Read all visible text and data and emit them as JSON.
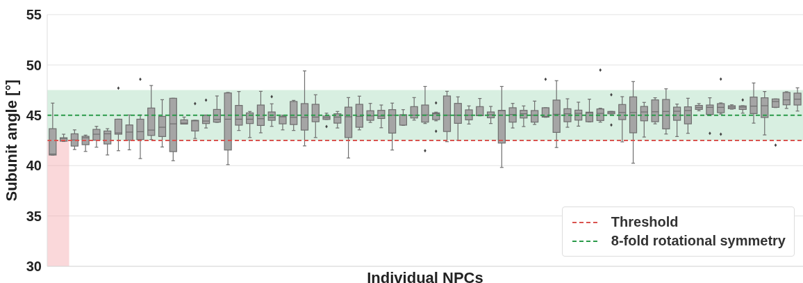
{
  "chart_data": {
    "type": "box",
    "xlabel": "Individual NPCs",
    "ylabel": "Subunit angle [°]",
    "ylim": [
      30,
      55
    ],
    "yticks": [
      30,
      35,
      40,
      45,
      50,
      55
    ],
    "grid": "y",
    "legend": "bottom right",
    "tick_labels": "y",
    "color": "#a5a5a5",
    "categories": [
      null,
      null,
      null,
      null,
      null,
      null,
      null,
      null,
      null,
      null,
      null,
      null,
      null,
      null,
      null,
      null,
      null,
      null,
      null,
      null,
      null,
      null,
      null,
      null,
      null,
      null,
      null,
      null,
      null,
      null,
      null,
      null,
      null,
      null,
      null,
      null,
      null,
      null,
      null,
      null,
      null,
      null,
      null,
      null,
      null,
      null,
      null,
      null,
      null,
      null,
      null,
      null,
      null,
      null,
      null,
      null,
      null,
      null,
      null,
      null,
      null,
      null,
      null,
      null,
      null,
      null,
      null,
      null,
      null
    ],
    "boxes": [
      {
        "low": 41.05,
        "q1": 41.05,
        "median": 41.15,
        "q3": 43.67,
        "high": 46.21
      },
      {
        "low": 42.4,
        "q1": 42.43,
        "median": 42.7,
        "q3": 42.77,
        "high": 43.12
      },
      {
        "low": 41.6,
        "q1": 41.94,
        "median": 42.55,
        "q3": 43.16,
        "high": 43.55
      },
      {
        "low": 41.41,
        "q1": 42.08,
        "median": 42.77,
        "q3": 42.91,
        "high": 43.03
      },
      {
        "low": 41.83,
        "q1": 42.52,
        "median": 43.12,
        "q3": 43.6,
        "high": 43.9
      },
      {
        "low": 41.06,
        "q1": 42.15,
        "median": 43.16,
        "q3": 43.44,
        "high": 43.67
      },
      {
        "low": 41.48,
        "q1": 43.12,
        "median": 43.25,
        "q3": 44.61,
        "high": 44.61,
        "outliers": [
          47.7
        ]
      },
      {
        "low": 41.57,
        "q1": 42.52,
        "median": 43.33,
        "q3": 44.04,
        "high": 45.03
      },
      {
        "low": 40.7,
        "q1": 42.59,
        "median": 43.37,
        "q3": 44.61,
        "high": 45.03,
        "outliers": [
          48.58
        ]
      },
      {
        "low": 42.59,
        "q1": 43.0,
        "median": 43.53,
        "q3": 45.72,
        "high": 47.96
      },
      {
        "low": 41.85,
        "q1": 42.89,
        "median": 43.81,
        "q3": 44.89,
        "high": 46.55
      },
      {
        "low": 40.49,
        "q1": 41.39,
        "median": 44.15,
        "q3": 46.69,
        "high": 46.69
      },
      {
        "low": 44.13,
        "q1": 44.13,
        "median": 44.22,
        "q3": 44.55,
        "high": 44.82
      },
      {
        "low": 42.7,
        "q1": 43.44,
        "median": 44.45,
        "q3": 44.5,
        "high": 44.5,
        "outliers": [
          46.16
        ]
      },
      {
        "low": 43.74,
        "q1": 44.18,
        "median": 44.43,
        "q3": 45.0,
        "high": 45.03,
        "outliers": [
          46.51
        ]
      },
      {
        "low": 44.3,
        "q1": 44.32,
        "median": 44.59,
        "q3": 45.58,
        "high": 46.92
      },
      {
        "low": 40.1,
        "q1": 41.55,
        "median": 44.61,
        "q3": 47.22,
        "high": 47.27
      },
      {
        "low": 43.49,
        "q1": 44.02,
        "median": 44.61,
        "q3": 45.98,
        "high": 47.36
      },
      {
        "low": 42.79,
        "q1": 44.18,
        "median": 44.61,
        "q3": 45.24,
        "high": 45.38
      },
      {
        "low": 43.26,
        "q1": 43.99,
        "median": 44.66,
        "q3": 46.02,
        "high": 47.38
      },
      {
        "low": 43.9,
        "q1": 44.5,
        "median": 44.78,
        "q3": 45.33,
        "high": 46.14,
        "outliers": [
          46.85
        ]
      },
      {
        "low": 43.55,
        "q1": 44.15,
        "median": 44.85,
        "q3": 44.89,
        "high": 45.01
      },
      {
        "low": 43.49,
        "q1": 44.08,
        "median": 44.8,
        "q3": 46.37,
        "high": 46.48
      },
      {
        "low": 41.96,
        "q1": 43.53,
        "median": 44.8,
        "q3": 46.16,
        "high": 49.41
      },
      {
        "low": 42.79,
        "q1": 44.36,
        "median": 44.82,
        "q3": 46.09,
        "high": 47.04
      },
      {
        "low": 44.59,
        "q1": 44.59,
        "median": 44.75,
        "q3": 44.92,
        "high": 45.21,
        "outliers": [
          43.88
        ]
      },
      {
        "low": 43.74,
        "q1": 44.22,
        "median": 44.82,
        "q3": 45.15,
        "high": 45.38
      },
      {
        "low": 40.76,
        "q1": 42.79,
        "median": 44.85,
        "q3": 45.81,
        "high": 46.76
      },
      {
        "low": 43.55,
        "q1": 43.81,
        "median": 44.89,
        "q3": 46.09,
        "high": 46.9
      },
      {
        "low": 44.29,
        "q1": 44.5,
        "median": 44.94,
        "q3": 45.45,
        "high": 46.18
      },
      {
        "low": 43.76,
        "q1": 44.68,
        "median": 44.92,
        "q3": 45.49,
        "high": 46.02
      },
      {
        "low": 41.55,
        "q1": 43.23,
        "median": 45.01,
        "q3": 45.56,
        "high": 46.21
      },
      {
        "low": 44.0,
        "q1": 44.02,
        "median": 45.03,
        "q3": 45.05,
        "high": 45.56
      },
      {
        "low": 44.52,
        "q1": 44.73,
        "median": 45.01,
        "q3": 45.86,
        "high": 46.76
      },
      {
        "low": 44.18,
        "q1": 44.32,
        "median": 45.03,
        "q3": 46.02,
        "high": 47.86,
        "outliers": [
          41.48
        ]
      },
      {
        "low": 44.45,
        "q1": 44.57,
        "median": 45.15,
        "q3": 45.24,
        "high": 45.31,
        "outliers": [
          46.23,
          43.42
        ]
      },
      {
        "low": 42.38,
        "q1": 43.39,
        "median": 45.01,
        "q3": 46.92,
        "high": 47.38
      },
      {
        "low": 42.52,
        "q1": 44.2,
        "median": 45.01,
        "q3": 46.18,
        "high": 46.83
      },
      {
        "low": 44.13,
        "q1": 44.55,
        "median": 45.01,
        "q3": 45.54,
        "high": 45.93
      },
      {
        "low": 44.94,
        "q1": 44.96,
        "median": 45.01,
        "q3": 45.86,
        "high": 46.67
      },
      {
        "low": 44.18,
        "q1": 44.75,
        "median": 45.05,
        "q3": 45.33,
        "high": 45.88
      },
      {
        "low": 39.82,
        "q1": 42.24,
        "median": 45.47,
        "q3": 45.49,
        "high": 47.86
      },
      {
        "low": 43.74,
        "q1": 44.32,
        "median": 45.08,
        "q3": 45.75,
        "high": 46.18
      },
      {
        "low": 43.88,
        "q1": 44.73,
        "median": 45.15,
        "q3": 45.49,
        "high": 45.93
      },
      {
        "low": 44.09,
        "q1": 44.32,
        "median": 45.01,
        "q3": 45.47,
        "high": 46.41
      },
      {
        "low": 44.8,
        "q1": 44.82,
        "median": 44.89,
        "q3": 45.75,
        "high": 45.75,
        "outliers": [
          48.58
        ]
      },
      {
        "low": 41.8,
        "q1": 43.3,
        "median": 45.1,
        "q3": 46.51,
        "high": 48.44
      },
      {
        "low": 43.81,
        "q1": 44.36,
        "median": 45.15,
        "q3": 45.65,
        "high": 46.64
      },
      {
        "low": 43.92,
        "q1": 44.52,
        "median": 45.19,
        "q3": 45.51,
        "high": 46.3
      },
      {
        "low": 44.34,
        "q1": 44.36,
        "median": 45.24,
        "q3": 45.31,
        "high": 46.6
      },
      {
        "low": 44.32,
        "q1": 44.48,
        "median": 45.19,
        "q3": 45.63,
        "high": 45.7,
        "outliers": [
          49.5
        ]
      },
      {
        "low": 45.13,
        "q1": 45.15,
        "median": 45.31,
        "q3": 45.38,
        "high": 45.38,
        "outliers": [
          47.04,
          44.04
        ]
      },
      {
        "low": 42.36,
        "q1": 44.57,
        "median": 45.28,
        "q3": 46.07,
        "high": 46.85
      },
      {
        "low": 40.24,
        "q1": 43.26,
        "median": 45.28,
        "q3": 46.83,
        "high": 48.35
      },
      {
        "low": 42.84,
        "q1": 44.45,
        "median": 45.33,
        "q3": 45.88,
        "high": 46.28
      },
      {
        "low": 44.15,
        "q1": 44.36,
        "median": 45.35,
        "q3": 46.53,
        "high": 46.74
      },
      {
        "low": 43.14,
        "q1": 43.65,
        "median": 45.38,
        "q3": 46.57,
        "high": 47.63
      },
      {
        "low": 42.89,
        "q1": 44.5,
        "median": 45.4,
        "q3": 45.81,
        "high": 46.11
      },
      {
        "low": 43.21,
        "q1": 44.15,
        "median": 45.47,
        "q3": 45.84,
        "high": 46.69
      },
      {
        "low": 45.45,
        "q1": 45.58,
        "median": 45.77,
        "q3": 45.98,
        "high": 46.16
      },
      {
        "low": 44.98,
        "q1": 45.08,
        "median": 45.79,
        "q3": 46.02,
        "high": 46.74,
        "outliers": [
          43.21
        ]
      },
      {
        "low": 45.12,
        "q1": 45.26,
        "median": 45.79,
        "q3": 46.16,
        "high": 46.23,
        "outliers": [
          48.6,
          43.12
        ]
      },
      {
        "low": 45.61,
        "q1": 45.65,
        "median": 45.81,
        "q3": 45.95,
        "high": 46.04
      },
      {
        "low": 45.21,
        "q1": 45.58,
        "median": 45.81,
        "q3": 45.93,
        "high": 45.95,
        "outliers": [
          46.53
        ]
      },
      {
        "low": 44.22,
        "q1": 45.17,
        "median": 45.91,
        "q3": 46.81,
        "high": 48.21
      },
      {
        "low": 43.05,
        "q1": 44.78,
        "median": 45.95,
        "q3": 46.74,
        "high": 47.36
      },
      {
        "low": 45.77,
        "q1": 45.79,
        "median": 46.37,
        "q3": 46.62,
        "high": 46.62,
        "outliers": [
          42.03
        ]
      },
      {
        "low": 45.68,
        "q1": 46.04,
        "median": 46.53,
        "q3": 47.27,
        "high": 47.34
      },
      {
        "low": 45.42,
        "q1": 46.02,
        "median": 46.6,
        "q3": 47.2,
        "high": 47.73
      }
    ],
    "ref_lines": [
      {
        "axis": "y",
        "value": 42.5,
        "label": "Threshold",
        "color": "#d9534f",
        "line_style": "dashed"
      },
      {
        "axis": "y",
        "value": 45,
        "label": "8-fold rotational symmetry",
        "color": "#2a9a4a",
        "line_style": "dashed"
      }
    ],
    "bands": [
      {
        "axis": "y",
        "from": 42.5,
        "to": 47.5,
        "color": "#a8dcbc"
      }
    ]
  }
}
